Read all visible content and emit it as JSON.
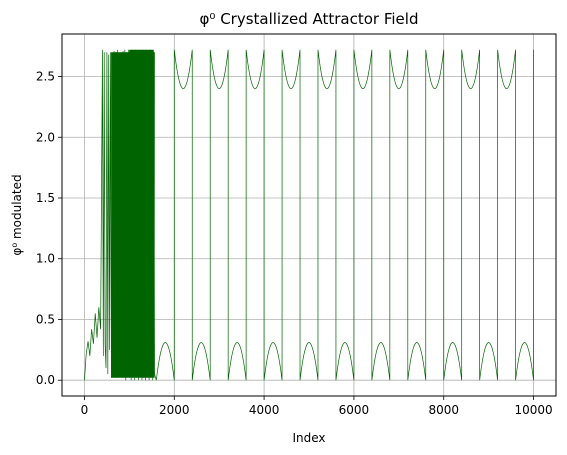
{
  "chart_data": {
    "type": "line",
    "title": "φ⁰ Crystallized Attractor Field",
    "xlabel": "Index",
    "ylabel": "φ⁰ modulated",
    "xlim": [
      -500,
      10500
    ],
    "ylim": [
      -0.13,
      2.85
    ],
    "xticks": [
      0,
      2000,
      4000,
      6000,
      8000,
      10000
    ],
    "yticks": [
      0.0,
      0.5,
      1.0,
      1.5,
      2.0,
      2.5
    ],
    "xtick_labels": [
      "0",
      "2000",
      "4000",
      "6000",
      "8000",
      "10000"
    ],
    "ytick_labels": [
      "0.0",
      "0.5",
      "1.0",
      "1.5",
      "2.0",
      "2.5"
    ],
    "grid": true,
    "line_color": "#006400",
    "series": [
      {
        "description": "dense chaotic region approx (index, value) samples",
        "x": [
          0,
          40,
          80,
          120,
          160,
          200,
          240,
          280,
          320,
          360,
          400,
          420,
          440,
          460,
          480,
          500,
          520,
          540,
          560,
          580,
          600,
          620,
          640,
          660,
          680,
          700,
          720,
          740,
          760,
          780,
          800,
          820,
          840,
          860,
          880,
          900,
          920,
          940,
          960,
          980,
          1000,
          1020,
          1040,
          1060,
          1080,
          1100,
          1120,
          1140,
          1160,
          1180,
          1200,
          1220,
          1240,
          1260,
          1280,
          1300,
          1320,
          1340,
          1360,
          1380,
          1400,
          1420,
          1440,
          1460,
          1480,
          1500,
          1520,
          1540,
          1560
        ],
        "y": [
          0.0,
          0.22,
          0.32,
          0.2,
          0.42,
          0.3,
          0.55,
          0.35,
          0.6,
          0.42,
          2.72,
          0.2,
          2.7,
          0.3,
          0.1,
          2.7,
          0.05,
          2.68,
          0.25,
          2.7,
          0.02,
          2.69,
          0.15,
          2.71,
          0.08,
          2.7,
          0.02,
          2.72,
          0.3,
          2.65,
          0.05,
          2.7,
          0.02,
          2.71,
          0.12,
          2.72,
          0.0,
          2.7,
          0.05,
          2.72,
          0.02,
          2.71,
          0.0,
          2.72,
          0.03,
          2.7,
          0.0,
          2.72,
          0.02,
          2.71,
          0.0,
          2.72,
          0.05,
          2.68,
          0.0,
          2.72,
          0.02,
          2.7,
          0.0,
          2.72,
          0.03,
          2.7,
          0.0,
          2.72,
          0.02,
          2.6,
          0.0,
          2.55,
          0.05
        ]
      },
      {
        "description": "crystallized periodic region: bottom arcs start/end indices, peak 0.31",
        "x": [
          1600,
          2000,
          2400,
          2800,
          3200,
          3600,
          4000,
          4400,
          4800,
          5200,
          5600,
          6000,
          6400,
          6800,
          7200,
          7600,
          8000,
          8400,
          8800,
          9200,
          9600,
          10000
        ],
        "y": [
          0.31,
          2.4,
          0.31,
          2.4,
          0.31,
          2.4,
          0.31,
          2.4,
          0.31,
          2.4,
          0.31,
          2.4,
          0.31,
          2.4,
          0.31,
          2.4,
          0.31,
          2.4,
          0.31,
          2.4,
          0.31,
          2.72
        ]
      }
    ]
  }
}
